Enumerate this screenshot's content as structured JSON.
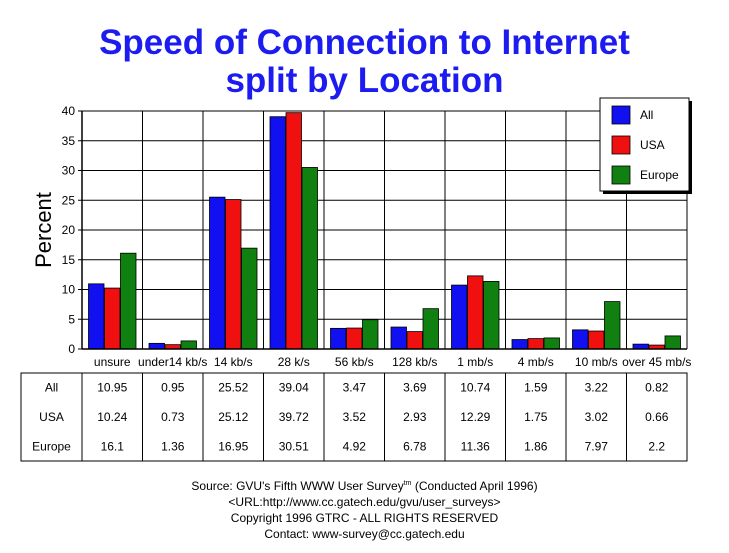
{
  "chart_data": {
    "type": "bar",
    "title": [
      "Speed of Connection to Internet",
      "split by Location"
    ],
    "ylabel": "Percent",
    "xlabel": "",
    "ylim": [
      0,
      40
    ],
    "yticks": [
      0,
      5,
      10,
      15,
      20,
      25,
      30,
      35,
      40
    ],
    "grid": true,
    "legend_position": "top-right",
    "categories": [
      "unsure",
      "under14 kb/s",
      "14 kb/s",
      "28 k/s",
      "56 kb/s",
      "128 kb/s",
      "1 mb/s",
      "4 mb/s",
      "10 mb/s",
      "over 45 mb/s"
    ],
    "series": [
      {
        "name": "All",
        "color": "#1010f0",
        "values": [
          10.95,
          0.95,
          25.52,
          39.04,
          3.47,
          3.69,
          10.74,
          1.59,
          3.22,
          0.82
        ]
      },
      {
        "name": "USA",
        "color": "#f01010",
        "values": [
          10.24,
          0.73,
          25.12,
          39.72,
          3.52,
          2.93,
          12.29,
          1.75,
          3.02,
          0.66
        ]
      },
      {
        "name": "Europe",
        "color": "#108010",
        "values": [
          16.1,
          1.36,
          16.95,
          30.51,
          4.92,
          6.78,
          11.36,
          1.86,
          7.97,
          2.2
        ]
      }
    ],
    "table_values": [
      [
        "10.95",
        "0.95",
        "25.52",
        "39.04",
        "3.47",
        "3.69",
        "10.74",
        "1.59",
        "3.22",
        "0.82"
      ],
      [
        "10.24",
        "0.73",
        "25.12",
        "39.72",
        "3.52",
        "2.93",
        "12.29",
        "1.75",
        "3.02",
        "0.66"
      ],
      [
        "16.1",
        "1.36",
        "16.95",
        "30.51",
        "4.92",
        "6.78",
        "11.36",
        "1.86",
        "7.97",
        "2.2"
      ]
    ]
  },
  "source": {
    "line1_prefix": "Source: GVU's Fifth WWW User Survey",
    "line1_sup": "tm",
    "line1_suffix": "  (Conducted April 1996)",
    "line2": "<URL:http://www.cc.gatech.edu/gvu/user_surveys>",
    "line3": "Copyright 1996 GTRC -  ALL RIGHTS RESERVED",
    "line4": "Contact: www-survey@cc.gatech.edu"
  }
}
